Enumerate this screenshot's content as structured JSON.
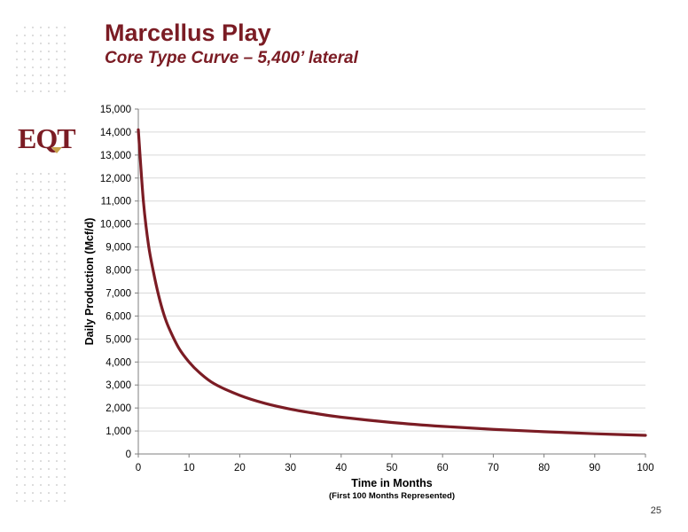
{
  "header": {
    "title": "Marcellus Play",
    "subtitle": "Core Type Curve – 5,400’ lateral"
  },
  "logo": {
    "text": "EQT"
  },
  "page_number": "25",
  "colors": {
    "brand": "#7b1c24",
    "curve": "#7b1c24",
    "grid": "#d9d9d9",
    "axis": "#7f7f7f",
    "text": "#000000",
    "logo_accent": "#c8a24a"
  },
  "chart_data": {
    "type": "line",
    "xlabel": "Time in Months",
    "xlabel_note": "(First 100 Months Represented)",
    "ylabel": "Daily Production (Mcf/d)",
    "xlim": [
      0,
      100
    ],
    "ylim": [
      0,
      15000
    ],
    "x_ticks": [
      0,
      10,
      20,
      30,
      40,
      50,
      60,
      70,
      80,
      90,
      100
    ],
    "y_ticks": [
      0,
      1000,
      2000,
      3000,
      4000,
      5000,
      6000,
      7000,
      8000,
      9000,
      10000,
      11000,
      12000,
      13000,
      14000,
      15000
    ],
    "x_tick_labels": [
      "0",
      "10",
      "20",
      "30",
      "40",
      "50",
      "60",
      "70",
      "80",
      "90",
      "100"
    ],
    "y_tick_labels": [
      "0",
      "1,000",
      "2,000",
      "3,000",
      "4,000",
      "5,000",
      "6,000",
      "7,000",
      "8,000",
      "9,000",
      "10,000",
      "11,000",
      "12,000",
      "13,000",
      "14,000",
      "15,000"
    ],
    "grid": "horizontal",
    "legend": "none",
    "series": [
      {
        "x": [
          0,
          1,
          2,
          3,
          4,
          5,
          6,
          8,
          10,
          12,
          15,
          20,
          25,
          30,
          35,
          40,
          50,
          60,
          70,
          80,
          90,
          100
        ],
        "y": [
          14100,
          11000,
          9100,
          7900,
          6900,
          6100,
          5500,
          4600,
          4000,
          3550,
          3050,
          2550,
          2200,
          1950,
          1760,
          1600,
          1370,
          1200,
          1070,
          970,
          880,
          810
        ]
      }
    ]
  }
}
